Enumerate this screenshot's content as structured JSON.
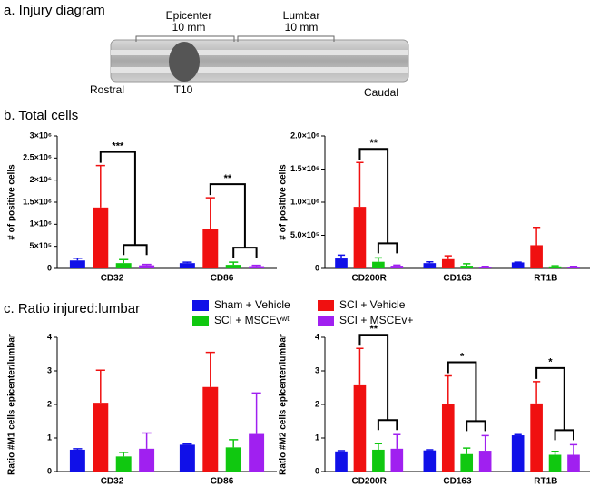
{
  "panels": [
    "a. Injury diagram",
    "b. Total cells",
    "c. Ratio injured:lumbar"
  ],
  "diagram": {
    "epicenter": "Epicenter",
    "epicenter_length": "10 mm",
    "lumbar": "Lumbar",
    "lumbar_length": "10 mm",
    "rostral": "Rostral",
    "t10": "T10",
    "caudal": "Caudal"
  },
  "legend": [
    {
      "name": "Sham  + Vehicle",
      "color": "#1010e8"
    },
    {
      "name": "SCI + Vehicle",
      "color": "#f01010"
    },
    {
      "name": "SCI + MSCEvʷᵗ",
      "color": "#10c810"
    },
    {
      "name": "SCI + MSCEv+",
      "color": "#a020f0"
    }
  ],
  "chart_data": [
    {
      "type": "bar",
      "ylabel": "# of positive cells",
      "categories": [
        "CD32",
        "CD86"
      ],
      "ylim": [
        0,
        3000000
      ],
      "yticks": [
        0,
        {
          "value": 500000,
          "label": "5×10⁵"
        },
        {
          "value": 1000000,
          "label": "1×10⁶"
        },
        {
          "value": 1500000,
          "label": "1.5×10⁶"
        },
        {
          "value": 2000000,
          "label": "2×10⁶"
        },
        {
          "value": 2500000,
          "label": "2.5×10⁶"
        },
        {
          "value": 3000000,
          "label": "3×10⁶"
        }
      ],
      "series": [
        {
          "values": [
            180000,
            120000
          ],
          "errors": [
            50000,
            20000
          ]
        },
        {
          "values": [
            1380000,
            900000
          ],
          "errors": [
            950000,
            700000
          ]
        },
        {
          "values": [
            120000,
            80000
          ],
          "errors": [
            80000,
            60000
          ]
        },
        {
          "values": [
            70000,
            50000
          ],
          "errors": [
            20000,
            20000
          ]
        }
      ],
      "annotations": [
        {
          "text": "***",
          "category": "CD32"
        },
        {
          "text": "**",
          "category": "CD86"
        }
      ]
    },
    {
      "type": "bar",
      "ylabel": "# of positive cells",
      "categories": [
        "CD200R",
        "CD163",
        "RT1B"
      ],
      "ylim": [
        0,
        2000000
      ],
      "yticks": [
        0,
        {
          "value": 500000,
          "label": "5.0×10⁵"
        },
        {
          "value": 1000000,
          "label": "1.0×10⁶"
        },
        {
          "value": 1500000,
          "label": "1.5×10⁶"
        },
        {
          "value": 2000000,
          "label": "2.0×10⁶"
        }
      ],
      "series": [
        {
          "values": [
            150000,
            80000,
            90000
          ],
          "errors": [
            50000,
            20000,
            5000
          ]
        },
        {
          "values": [
            930000,
            140000,
            350000
          ],
          "errors": [
            670000,
            50000,
            270000
          ]
        },
        {
          "values": [
            100000,
            40000,
            30000
          ],
          "errors": [
            60000,
            30000,
            10000
          ]
        },
        {
          "values": [
            40000,
            20000,
            20000
          ],
          "errors": [
            10000,
            10000,
            10000
          ]
        }
      ],
      "annotations": [
        {
          "text": "**",
          "category": "CD200R"
        }
      ]
    },
    {
      "type": "bar",
      "ylabel": "Ratio #M1 cells epicenter/lumbar",
      "categories": [
        "CD32",
        "CD86"
      ],
      "ylim": [
        0,
        4
      ],
      "yticks": [
        0,
        1,
        2,
        3,
        4
      ],
      "series": [
        {
          "values": [
            0.65,
            0.8
          ],
          "errors": [
            0.03,
            0.02
          ]
        },
        {
          "values": [
            2.05,
            2.52
          ],
          "errors": [
            0.97,
            1.03
          ]
        },
        {
          "values": [
            0.45,
            0.72
          ],
          "errors": [
            0.12,
            0.23
          ]
        },
        {
          "values": [
            0.68,
            1.12
          ],
          "errors": [
            0.47,
            1.22
          ]
        }
      ],
      "annotations": []
    },
    {
      "type": "bar",
      "ylabel": "Ratio #M2 cells epicenter/lumbar",
      "categories": [
        "CD200R",
        "CD163",
        "RT1B"
      ],
      "ylim": [
        0,
        4
      ],
      "yticks": [
        0,
        1,
        2,
        3,
        4
      ],
      "series": [
        {
          "values": [
            0.6,
            0.63,
            1.08
          ],
          "errors": [
            0.02,
            0.02,
            0.02
          ]
        },
        {
          "values": [
            2.57,
            2.0,
            2.03
          ],
          "errors": [
            1.1,
            0.85,
            0.65
          ]
        },
        {
          "values": [
            0.65,
            0.52,
            0.5
          ],
          "errors": [
            0.18,
            0.18,
            0.1
          ]
        },
        {
          "values": [
            0.68,
            0.62,
            0.5
          ],
          "errors": [
            0.42,
            0.45,
            0.3
          ]
        }
      ],
      "annotations": [
        {
          "text": "**",
          "category": "CD200R"
        },
        {
          "text": "*",
          "category": "CD163"
        },
        {
          "text": "*",
          "category": "RT1B"
        }
      ]
    }
  ]
}
